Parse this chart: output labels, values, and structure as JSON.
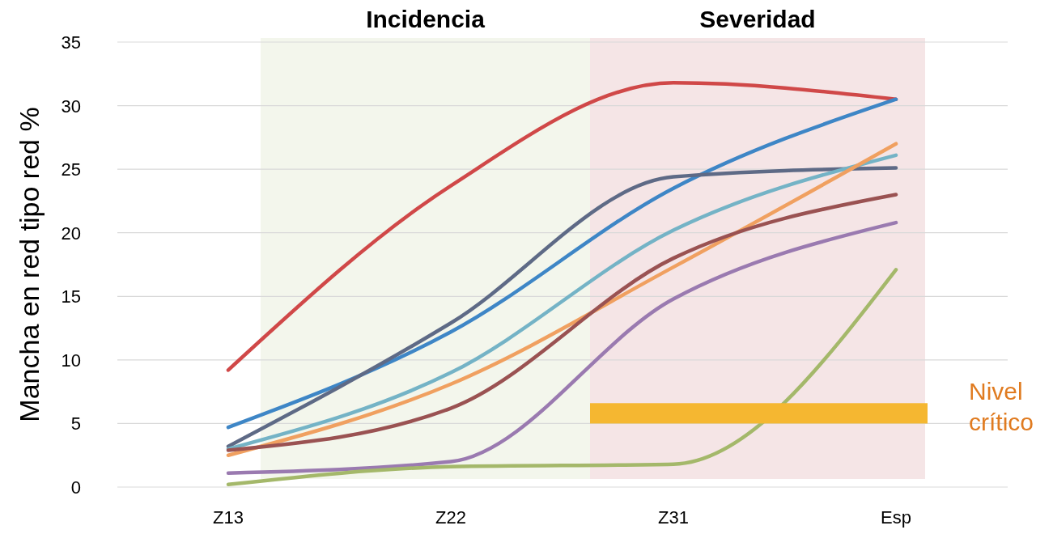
{
  "chart_data": {
    "type": "line",
    "ylabel": "Mancha en red tipo red %",
    "categories": [
      "Z13",
      "Z22",
      "Z31",
      "Esp"
    ],
    "ylim": [
      0,
      35
    ],
    "yticks": [
      0,
      5,
      10,
      15,
      20,
      25,
      30,
      35
    ],
    "grid": "y",
    "marker": "none",
    "annotations": [
      "Incidencia",
      "Severidad"
    ],
    "line_style": "solid",
    "series": [
      {
        "color": "#d04848",
        "values": [
          9.2,
          23.7,
          31.8,
          30.5
        ]
      },
      {
        "color": "#3e86c6",
        "values": [
          4.7,
          12.2,
          23.5,
          30.5
        ]
      },
      {
        "color": "#5e6a86",
        "values": [
          3.2,
          12.9,
          24.4,
          25.1
        ]
      },
      {
        "color": "#74b3c6",
        "values": [
          3.0,
          9.0,
          20.2,
          26.1
        ]
      },
      {
        "color": "#f0a060",
        "values": [
          2.5,
          8.1,
          17.3,
          27.0
        ]
      },
      {
        "color": "#9a5252",
        "values": [
          2.9,
          6.2,
          18.0,
          23.0
        ]
      },
      {
        "color": "#9a7ab0",
        "values": [
          1.1,
          2.0,
          14.8,
          20.8
        ]
      },
      {
        "color": "#a4b86a",
        "values": [
          0.2,
          1.6,
          1.8,
          17.1
        ]
      }
    ],
    "bands": [
      {
        "axis": "y",
        "from": 5,
        "to": 6.6,
        "label": "Nivel crítico",
        "color": "#f5b731"
      }
    ]
  }
}
